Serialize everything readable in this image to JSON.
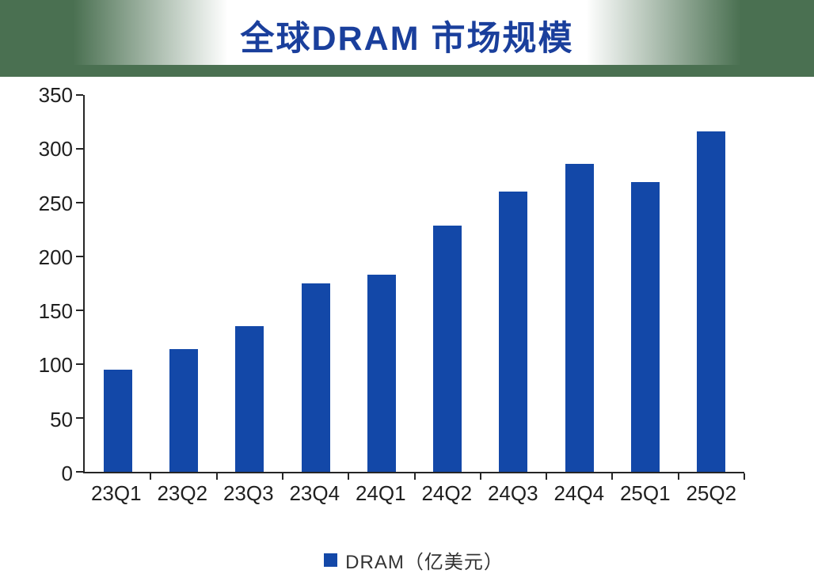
{
  "header": {
    "title": "全球DRAM 市场规模"
  },
  "legend": {
    "label": "DRAM（亿美元）"
  },
  "colors": {
    "bar": "#1348a8",
    "title_blue": "#1a3f9c",
    "header_green": "#4a7051",
    "axis": "#262626"
  },
  "chart_data": {
    "type": "bar",
    "title": "全球DRAM 市场规模",
    "categories": [
      "23Q1",
      "23Q2",
      "23Q3",
      "23Q4",
      "24Q1",
      "24Q2",
      "24Q3",
      "24Q4",
      "25Q1",
      "25Q2"
    ],
    "values": [
      95,
      114,
      135,
      175,
      183,
      229,
      260,
      286,
      269,
      316
    ],
    "series_name": "DRAM（亿美元）",
    "xlabel": "",
    "ylabel": "",
    "ylim": [
      0,
      350
    ],
    "yticks": [
      0,
      50,
      100,
      150,
      200,
      250,
      300,
      350
    ],
    "grid": false,
    "legend_position": "bottom"
  }
}
